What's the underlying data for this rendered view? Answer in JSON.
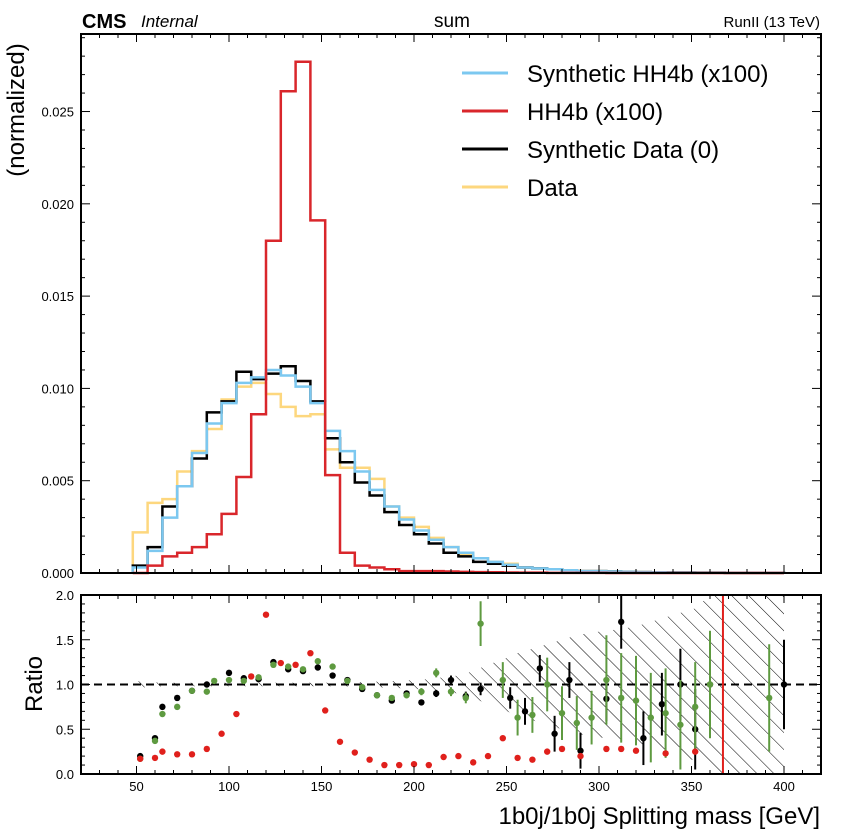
{
  "header": {
    "cms": "CMS",
    "internal": "Internal",
    "center": "sum",
    "right": "RunII (13 TeV)"
  },
  "colors": {
    "synthetic_hh4b": "#7cc8f0",
    "hh4b": "#d9262b",
    "synthetic_data": "#000000",
    "data": "#fdd77e",
    "ratio_green": "#5e9a40",
    "ratio_black": "#000000",
    "ratio_red": "#e0201c"
  },
  "chart_data": [
    {
      "type": "line",
      "title": "",
      "xlabel": "",
      "ylabel": "(normalized)",
      "xlim": [
        20,
        420
      ],
      "ylim": [
        0,
        0.0292
      ],
      "yticks": [
        0.0,
        0.005,
        0.01,
        0.015,
        0.02,
        0.025
      ],
      "yticklabels": [
        "0.000",
        "0.005",
        "0.010",
        "0.015",
        "0.020",
        "0.025"
      ],
      "bin_edges": [
        48,
        56,
        64,
        72,
        80,
        88,
        96,
        104,
        112,
        120,
        128,
        136,
        144,
        152,
        160,
        168,
        176,
        184,
        192,
        200,
        208,
        216,
        224,
        232,
        240,
        248,
        256,
        264,
        272,
        280,
        288,
        296,
        304,
        312,
        320,
        328,
        336,
        344,
        352,
        360,
        368,
        376,
        384,
        392,
        400
      ],
      "legend_position": "top-right",
      "series": [
        {
          "name": "Synthetic HH4b (x100)",
          "color_key": "synthetic_hh4b",
          "values": [
            0.0003,
            0.0012,
            0.003,
            0.0047,
            0.0065,
            0.0081,
            0.0092,
            0.0103,
            0.0106,
            0.011,
            0.0107,
            0.0101,
            0.0092,
            0.0077,
            0.0066,
            0.0055,
            0.0045,
            0.0036,
            0.0029,
            0.0023,
            0.0018,
            0.0014,
            0.0011,
            0.0008,
            0.0006,
            0.00045,
            0.0003,
            0.00025,
            0.0002,
            0.00015,
            0.0001,
            0.0001,
            8e-05,
            6e-05,
            5e-05,
            4e-05,
            3e-05,
            3e-05,
            2e-05,
            2e-05,
            1e-05,
            1e-05,
            1e-05,
            1e-05
          ]
        },
        {
          "name": "HH4b (x100)",
          "color_key": "hh4b",
          "values": [
            0.0,
            0.0004,
            0.0009,
            0.0011,
            0.0014,
            0.0021,
            0.0032,
            0.0052,
            0.0086,
            0.018,
            0.0261,
            0.0277,
            0.0191,
            0.0053,
            0.0011,
            0.0004,
            0.0003,
            0.0002,
            0.0001,
            0.0001,
            0.0001,
            8e-05,
            6e-05,
            5e-05,
            4e-05,
            3e-05,
            2e-05,
            2e-05,
            1e-05,
            1e-05,
            1e-05,
            1e-05,
            0.0,
            0.0,
            0.0,
            0.0,
            0.0,
            0.0,
            0.0,
            0.0,
            0.0,
            0.0,
            0.0,
            0.0
          ]
        },
        {
          "name": "Synthetic Data (0)",
          "color_key": "synthetic_data",
          "values": [
            0.0004,
            0.0014,
            0.0036,
            0.0047,
            0.0062,
            0.0087,
            0.0093,
            0.0109,
            0.0105,
            0.0108,
            0.0112,
            0.0104,
            0.0093,
            0.0073,
            0.006,
            0.0049,
            0.0042,
            0.0033,
            0.0026,
            0.0021,
            0.0016,
            0.0011,
            0.0009,
            0.0006,
            0.0005,
            0.0004,
            0.0003,
            0.00025,
            0.0002,
            0.00015,
            0.0001,
            0.0001,
            8e-05,
            6e-05,
            5e-05,
            4e-05,
            3e-05,
            3e-05,
            2e-05,
            2e-05,
            1e-05,
            1e-05,
            1e-05,
            1e-05
          ]
        },
        {
          "name": "Data",
          "color_key": "data",
          "values": [
            0.0022,
            0.0038,
            0.004,
            0.0055,
            0.0066,
            0.0078,
            0.0094,
            0.0101,
            0.0103,
            0.0097,
            0.009,
            0.0085,
            0.0086,
            0.0067,
            0.0057,
            0.0057,
            0.0051,
            0.0036,
            0.003,
            0.0025,
            0.0019,
            0.0014,
            0.001,
            0.0008,
            0.0006,
            0.0005,
            0.0003,
            0.00025,
            0.0002,
            0.00015,
            0.0001,
            0.0001,
            8e-05,
            6e-05,
            5e-05,
            4e-05,
            3e-05,
            3e-05,
            2e-05,
            2e-05,
            1e-05,
            1e-05,
            1e-05,
            1e-05
          ]
        }
      ]
    },
    {
      "type": "scatter",
      "xlabel": "1b0j/1b0j Splitting mass [GeV]",
      "ylabel": "Ratio",
      "xlim": [
        20,
        420
      ],
      "ylim": [
        0.0,
        2.0
      ],
      "xticks": [
        50,
        100,
        150,
        200,
        250,
        300,
        350,
        400
      ],
      "xticklabels": [
        "50",
        "100",
        "150",
        "200",
        "250",
        "300",
        "350",
        "400"
      ],
      "yticks": [
        0.0,
        0.5,
        1.0,
        1.5,
        2.0
      ],
      "yticklabels": [
        "0.0",
        "0.5",
        "1.0",
        "1.5",
        "2.0"
      ],
      "reference_line": 1.0,
      "vertical_line_x": 367,
      "uncertainty_band": {
        "x": [
          48,
          64,
          80,
          96,
          112,
          128,
          144,
          160,
          176,
          192,
          208,
          224,
          232,
          240,
          248,
          256,
          264,
          272,
          280,
          288,
          296,
          304,
          312,
          320,
          328,
          336,
          344,
          352,
          360,
          368,
          376,
          384,
          392,
          400
        ],
        "lo": [
          0.96,
          0.98,
          0.98,
          0.98,
          0.98,
          0.98,
          0.98,
          0.98,
          0.97,
          0.96,
          0.94,
          0.9,
          0.85,
          0.78,
          0.72,
          0.65,
          0.6,
          0.55,
          0.5,
          0.45,
          0.42,
          0.4,
          0.38,
          0.35,
          0.3,
          0.25,
          0.2,
          0.15,
          0.0,
          0.0,
          0.0,
          0.0,
          0.0,
          0.0
        ],
        "hi": [
          1.04,
          1.02,
          1.02,
          1.02,
          1.02,
          1.02,
          1.02,
          1.02,
          1.03,
          1.04,
          1.06,
          1.1,
          1.15,
          1.22,
          1.28,
          1.35,
          1.4,
          1.45,
          1.5,
          1.55,
          1.58,
          1.6,
          1.62,
          1.65,
          1.7,
          1.75,
          1.8,
          1.85,
          2.0,
          2.0,
          2.0,
          2.0,
          2.0,
          2.0
        ]
      },
      "series": [
        {
          "name": "",
          "color_key": "ratio_black",
          "points": [
            [
              52,
              0.2,
              0
            ],
            [
              60,
              0.4,
              0
            ],
            [
              64,
              0.75,
              0
            ],
            [
              72,
              0.85,
              0
            ],
            [
              80,
              0.93,
              0
            ],
            [
              88,
              1.0,
              0
            ],
            [
              100,
              1.13,
              0
            ],
            [
              108,
              1.07,
              0
            ],
            [
              116,
              1.06,
              0
            ],
            [
              124,
              1.25,
              0
            ],
            [
              132,
              1.17,
              0
            ],
            [
              140,
              1.15,
              0
            ],
            [
              148,
              1.19,
              0
            ],
            [
              156,
              1.1,
              0
            ],
            [
              164,
              1.05,
              0
            ],
            [
              172,
              0.95,
              0
            ],
            [
              180,
              0.88,
              0
            ],
            [
              188,
              0.82,
              0
            ],
            [
              196,
              0.9,
              0
            ],
            [
              204,
              0.8,
              0.03
            ],
            [
              212,
              0.9,
              0.04
            ],
            [
              220,
              1.05,
              0.05
            ],
            [
              228,
              0.87,
              0.05
            ],
            [
              236,
              0.95,
              0.07
            ],
            [
              252,
              0.85,
              0.12
            ],
            [
              260,
              0.7,
              0.15
            ],
            [
              268,
              1.18,
              0.15
            ],
            [
              276,
              0.45,
              0.2
            ],
            [
              284,
              1.05,
              0.2
            ],
            [
              290,
              0.26,
              0.2
            ],
            [
              304,
              0.84,
              0.25
            ],
            [
              312,
              1.7,
              0.3
            ],
            [
              324,
              0.4,
              0.3
            ],
            [
              334,
              0.78,
              0.35
            ],
            [
              344,
              1.0,
              0.4
            ],
            [
              352,
              0.5,
              0.45
            ],
            [
              360,
              1.0,
              0.5
            ],
            [
              400,
              1.0,
              0.5
            ]
          ]
        },
        {
          "name": "",
          "color_key": "ratio_green",
          "points": [
            [
              52,
              0.17,
              0
            ],
            [
              60,
              0.37,
              0
            ],
            [
              64,
              0.67,
              0
            ],
            [
              72,
              0.75,
              0
            ],
            [
              80,
              0.93,
              0
            ],
            [
              88,
              0.92,
              0
            ],
            [
              92,
              1.04,
              0
            ],
            [
              100,
              1.05,
              0
            ],
            [
              108,
              1.04,
              0
            ],
            [
              116,
              1.08,
              0
            ],
            [
              124,
              1.22,
              0
            ],
            [
              132,
              1.2,
              0
            ],
            [
              140,
              1.17,
              0
            ],
            [
              148,
              1.26,
              0
            ],
            [
              156,
              1.2,
              0
            ],
            [
              164,
              1.04,
              0
            ],
            [
              172,
              0.97,
              0
            ],
            [
              180,
              0.88,
              0
            ],
            [
              188,
              0.85,
              0
            ],
            [
              196,
              0.88,
              0.03
            ],
            [
              204,
              0.92,
              0.04
            ],
            [
              212,
              1.13,
              0.05
            ],
            [
              220,
              0.92,
              0.05
            ],
            [
              228,
              0.85,
              0.06
            ],
            [
              236,
              1.68,
              0.25
            ],
            [
              248,
              1.05,
              0.2
            ],
            [
              256,
              0.63,
              0.2
            ],
            [
              264,
              0.66,
              0.2
            ],
            [
              272,
              1.0,
              0.3
            ],
            [
              280,
              0.68,
              0.3
            ],
            [
              288,
              0.57,
              0.3
            ],
            [
              296,
              0.63,
              0.3
            ],
            [
              304,
              1.05,
              0.5
            ],
            [
              312,
              0.85,
              0.5
            ],
            [
              320,
              0.82,
              0.5
            ],
            [
              328,
              0.63,
              0.5
            ],
            [
              336,
              0.68,
              0.5
            ],
            [
              344,
              0.55,
              0.5
            ],
            [
              352,
              0.75,
              0.5
            ],
            [
              360,
              1.0,
              0.6
            ],
            [
              392,
              0.85,
              0.6
            ]
          ]
        },
        {
          "name": "",
          "color_key": "ratio_red",
          "points": [
            [
              52,
              0.17
            ],
            [
              60,
              0.18
            ],
            [
              64,
              0.25
            ],
            [
              72,
              0.22
            ],
            [
              80,
              0.22
            ],
            [
              88,
              0.28
            ],
            [
              96,
              0.45
            ],
            [
              104,
              0.67
            ],
            [
              112,
              1.09
            ],
            [
              120,
              1.78
            ],
            [
              128,
              1.24
            ],
            [
              136,
              1.22
            ],
            [
              144,
              1.35
            ],
            [
              152,
              0.71
            ],
            [
              160,
              0.36
            ],
            [
              168,
              0.24
            ],
            [
              176,
              0.16
            ],
            [
              184,
              0.1
            ],
            [
              192,
              0.1
            ],
            [
              200,
              0.11
            ],
            [
              208,
              0.1
            ],
            [
              216,
              0.19
            ],
            [
              224,
              0.2
            ],
            [
              232,
              0.13
            ],
            [
              240,
              0.2
            ],
            [
              248,
              0.4
            ],
            [
              256,
              0.18
            ],
            [
              264,
              0.16
            ],
            [
              272,
              0.25
            ],
            [
              280,
              0.28
            ],
            [
              290,
              0.2
            ],
            [
              304,
              0.28
            ],
            [
              312,
              0.28
            ],
            [
              320,
              0.26
            ],
            [
              336,
              0.23
            ],
            [
              352,
              0.25
            ]
          ]
        }
      ]
    }
  ]
}
